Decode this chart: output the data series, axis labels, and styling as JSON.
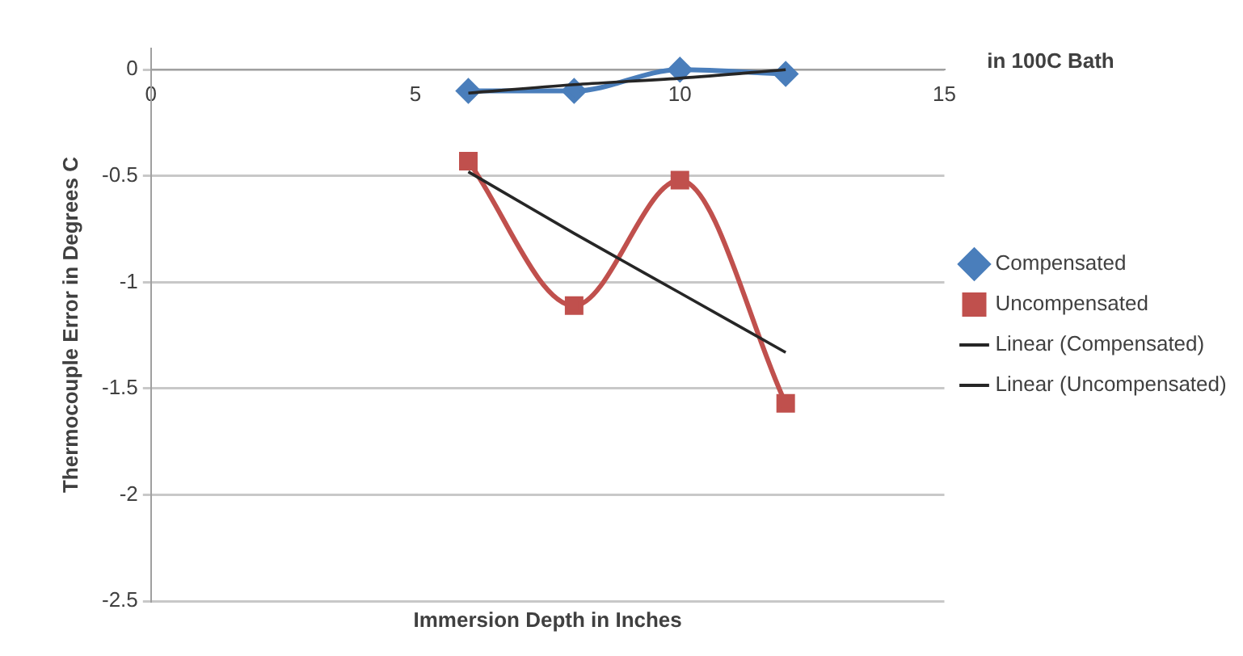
{
  "chart_data": {
    "type": "line",
    "title": "in 100C Bath",
    "xlabel": "Immersion Depth in Inches",
    "ylabel": "Thermocouple Error in Degrees C",
    "x": [
      6,
      8,
      10,
      12
    ],
    "series": [
      {
        "name": "Compensated",
        "color": "#4a7ebb",
        "values": [
          -0.1,
          -0.1,
          0,
          -0.02
        ],
        "marker": "diamond"
      },
      {
        "name": "Uncompensated",
        "color": "#c0504d",
        "values": [
          -0.43,
          -1.11,
          -0.52,
          -1.57
        ],
        "marker": "square"
      },
      {
        "name": "Linear (Compensated)",
        "color": "#262626",
        "type": "line",
        "values": [
          -0.11,
          -0.07,
          -0.04,
          0
        ],
        "marker": "none"
      },
      {
        "name": "Linear (Uncompensated)",
        "color": "#262626",
        "type": "line",
        "values": [
          -0.48,
          -0.77,
          -1.05,
          -1.33
        ],
        "marker": "none"
      }
    ],
    "xlim": [
      0,
      15
    ],
    "xticks": [
      0,
      5,
      10,
      15
    ],
    "ylim": [
      -2.5,
      0.1
    ],
    "yticks": [
      -2.5,
      -2,
      -1.5,
      -1,
      -0.5,
      0
    ],
    "grid": "y",
    "legend": "right"
  }
}
